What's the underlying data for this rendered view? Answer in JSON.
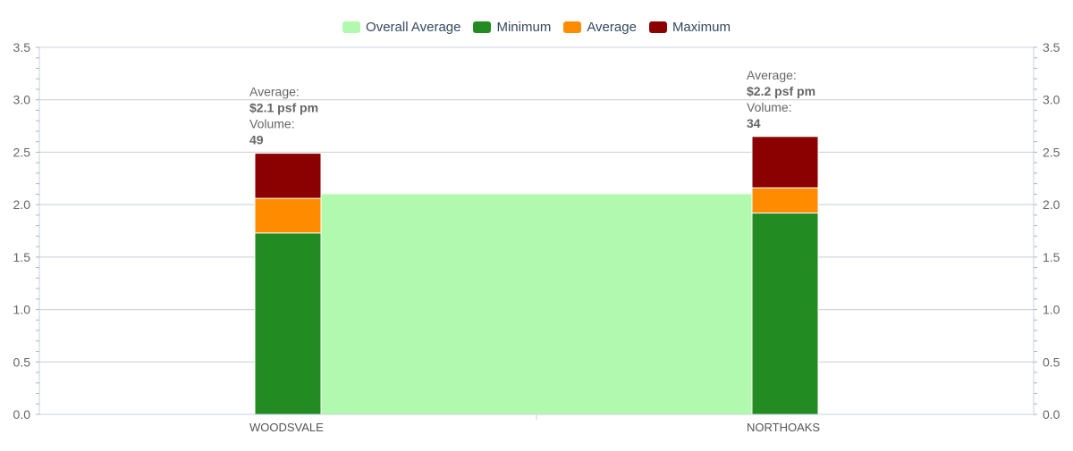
{
  "chart_data": {
    "type": "bar",
    "stacked": true,
    "categories": [
      "WOODSVALE",
      "NORTHOAKS"
    ],
    "series": [
      {
        "name": "Minimum",
        "color": "#228b22",
        "values": [
          1.73,
          1.92
        ]
      },
      {
        "name": "Average",
        "color": "#ff8c00",
        "values": [
          0.33,
          0.24
        ]
      },
      {
        "name": "Maximum",
        "color": "#8b0000",
        "values": [
          0.43,
          0.49
        ]
      }
    ],
    "overall_average": {
      "name": "Overall Average",
      "color": "#b2f9b0",
      "value": 2.1
    },
    "legend": [
      "Overall Average",
      "Minimum",
      "Average",
      "Maximum"
    ],
    "legend_position": "top-center",
    "annotations": [
      {
        "category": "WOODSVALE",
        "average_label": "Average:",
        "average_value": "$2.1 psf pm",
        "volume_label": "Volume:",
        "volume_value": "49"
      },
      {
        "category": "NORTHOAKS",
        "average_label": "Average:",
        "average_value": "$2.2 psf pm",
        "volume_label": "Volume:",
        "volume_value": "34"
      }
    ],
    "ylim": [
      0,
      3.5
    ],
    "yticks": [
      "0.0",
      "0.5",
      "1.0",
      "1.5",
      "2.0",
      "2.5",
      "3.0",
      "3.5"
    ],
    "right_axis_mirrors_left": true,
    "grid": true,
    "title": "",
    "xlabel": "",
    "ylabel": ""
  }
}
